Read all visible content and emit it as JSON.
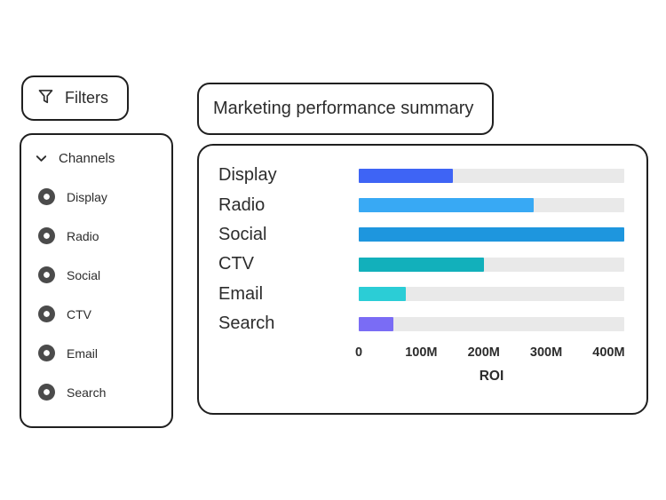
{
  "filters": {
    "label": "Filters"
  },
  "channels": {
    "title": "Channels",
    "items": [
      {
        "label": "Display",
        "selected": true
      },
      {
        "label": "Radio",
        "selected": true
      },
      {
        "label": "Social",
        "selected": true
      },
      {
        "label": "CTV",
        "selected": true
      },
      {
        "label": "Email",
        "selected": true
      },
      {
        "label": "Search",
        "selected": true
      }
    ]
  },
  "chart_title": "Marketing performance summary",
  "chart_data": {
    "type": "bar",
    "orientation": "horizontal",
    "title": "Marketing performance summary",
    "categories": [
      "Display",
      "Radio",
      "Social",
      "CTV",
      "Email",
      "Search"
    ],
    "values": [
      150,
      280,
      425,
      200,
      75,
      55
    ],
    "value_unit": "M",
    "xlabel": "ROI",
    "xlim": [
      0,
      425
    ],
    "ticks": [
      {
        "label": "0",
        "value": 0
      },
      {
        "label": "100M",
        "value": 100
      },
      {
        "label": "200M",
        "value": 200
      },
      {
        "label": "300M",
        "value": 300
      },
      {
        "label": "400M",
        "value": 400
      }
    ],
    "bar_colors": [
      "#3e64f5",
      "#38a9f4",
      "#1e96de",
      "#12b0bb",
      "#2bcdd6",
      "#7a6cf5"
    ],
    "track_color": "#e9e9e9",
    "grid": false,
    "legend": false
  },
  "theme": {
    "background": "#ffffff",
    "card_border": "#1f1f1f",
    "text": "#2c2c2c",
    "radio_fill": "#4b4b4b"
  }
}
